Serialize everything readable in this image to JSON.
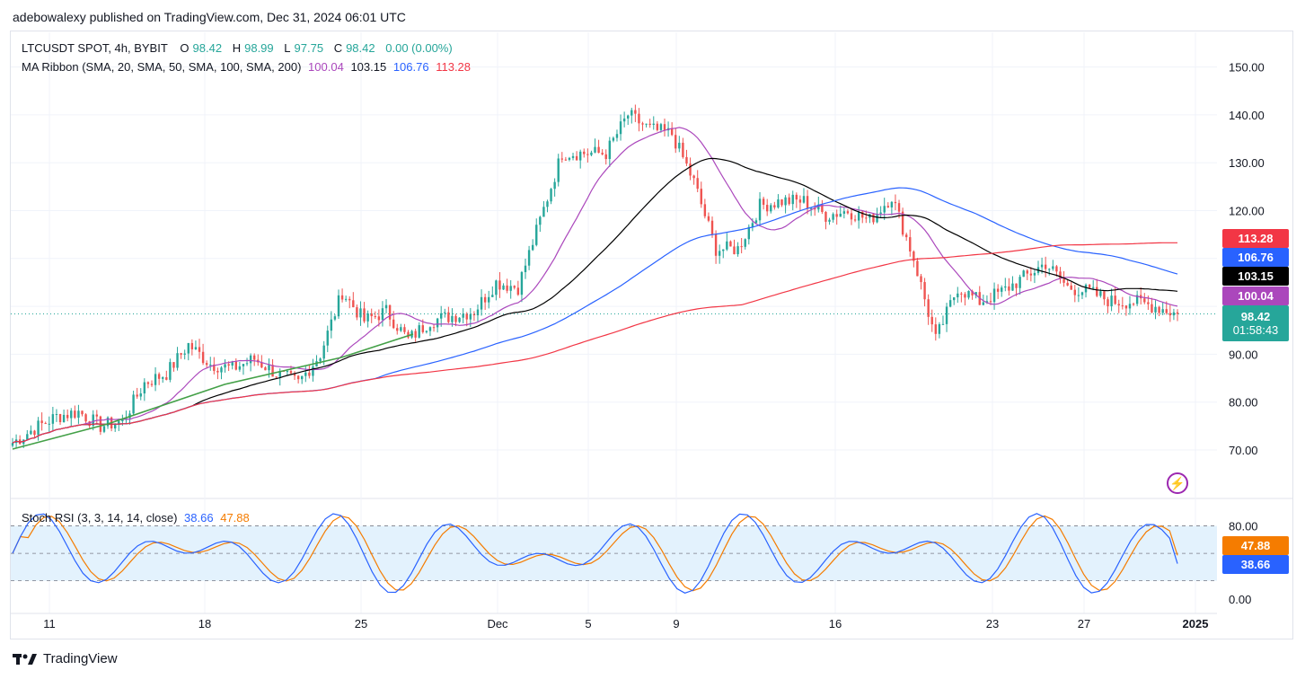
{
  "publish_line": "adebowalexy published on TradingView.com, Dec 31, 2024 06:01 UTC",
  "legend": {
    "symbol": "LTCUSDT SPOT, 4h, BYBIT",
    "o_label": "O",
    "o": "98.42",
    "h_label": "H",
    "h": "98.99",
    "l_label": "L",
    "l": "97.75",
    "c_label": "C",
    "c": "98.42",
    "change": "0.00 (0.00%)",
    "ma_label": "MA Ribbon (SMA, 20, SMA, 50, SMA, 100, SMA, 200)",
    "ma20": "100.04",
    "ma50": "103.15",
    "ma100": "106.76",
    "ma200": "113.28",
    "stoch_label": "Stoch RSI (3, 3, 14, 14, close)",
    "stoch_k": "38.66",
    "stoch_d": "47.88"
  },
  "price_badges": {
    "ma200": "113.28",
    "ma100": "106.76",
    "ma50": "103.15",
    "ma20": "100.04",
    "last": "98.42",
    "countdown": "01:58:43"
  },
  "stoch_badges": {
    "d": "47.88",
    "k": "38.66"
  },
  "footer_brand": "TradingView",
  "colors": {
    "up": "#26a69a",
    "down": "#ef5350",
    "ma20": "#ab47bc",
    "ma50": "#000000",
    "ma100": "#2962ff",
    "ma200": "#f23645",
    "green_line": "#43a047",
    "k": "#2962ff",
    "d": "#f57c00",
    "band": "#e3f2fd"
  },
  "chart_data": [
    {
      "type": "line",
      "symbol": "LTCUSDT",
      "timeframe": "4h",
      "x_ticks": [
        "11",
        "18",
        "25",
        "Dec",
        "5",
        "9",
        "16",
        "23",
        "27",
        "2025"
      ],
      "y_ticks": [
        70,
        80,
        90,
        100,
        110,
        120,
        130,
        140,
        150
      ],
      "y_tick_labels": [
        "70.00",
        "80.00",
        "90.00",
        "",
        "",
        "120.00",
        "130.00",
        "140.00",
        "150.00"
      ],
      "ylim": [
        62,
        156
      ],
      "x": [
        "11",
        "",
        "",
        "",
        "18",
        "",
        "",
        "",
        "25",
        "",
        "",
        "",
        "Dec",
        "",
        "5",
        "",
        "9",
        "",
        "",
        "",
        "16",
        "",
        "",
        "",
        "23",
        "",
        "27",
        "",
        "",
        "2025"
      ],
      "close_points": [
        {
          "t": "Nov 8",
          "v": 71.5
        },
        {
          "t": "Nov 9",
          "v": 74.5
        },
        {
          "t": "Nov 10",
          "v": 77
        },
        {
          "t": "Nov 11",
          "v": 78
        },
        {
          "t": "Nov 12",
          "v": 75
        },
        {
          "t": "Nov 13",
          "v": 76
        },
        {
          "t": "Nov 14",
          "v": 84
        },
        {
          "t": "Nov 15",
          "v": 86
        },
        {
          "t": "Nov 16",
          "v": 92
        },
        {
          "t": "Nov 17",
          "v": 88
        },
        {
          "t": "Nov 18",
          "v": 87
        },
        {
          "t": "Nov 19",
          "v": 89
        },
        {
          "t": "Nov 20",
          "v": 86
        },
        {
          "t": "Nov 21",
          "v": 84
        },
        {
          "t": "Nov 22",
          "v": 90
        },
        {
          "t": "Nov 23",
          "v": 103
        },
        {
          "t": "Nov 24",
          "v": 97
        },
        {
          "t": "Nov 25",
          "v": 99
        },
        {
          "t": "Nov 26",
          "v": 93
        },
        {
          "t": "Nov 27",
          "v": 97
        },
        {
          "t": "Nov 28",
          "v": 98
        },
        {
          "t": "Nov 29",
          "v": 99
        },
        {
          "t": "Nov 30",
          "v": 105
        },
        {
          "t": "Dec 1",
          "v": 104
        },
        {
          "t": "Dec 2",
          "v": 118
        },
        {
          "t": "Dec 3",
          "v": 132
        },
        {
          "t": "Dec 4",
          "v": 132
        },
        {
          "t": "Dec 5",
          "v": 132
        },
        {
          "t": "Dec 6",
          "v": 140
        },
        {
          "t": "Dec 7",
          "v": 137
        },
        {
          "t": "Dec 8",
          "v": 136
        },
        {
          "t": "Dec 9",
          "v": 126
        },
        {
          "t": "Dec 10",
          "v": 112
        },
        {
          "t": "Dec 11",
          "v": 112
        },
        {
          "t": "Dec 12",
          "v": 121
        },
        {
          "t": "Dec 13",
          "v": 122
        },
        {
          "t": "Dec 14",
          "v": 122
        },
        {
          "t": "Dec 15",
          "v": 119
        },
        {
          "t": "Dec 16",
          "v": 120
        },
        {
          "t": "Dec 17",
          "v": 118
        },
        {
          "t": "Dec 18",
          "v": 123
        },
        {
          "t": "Dec 19",
          "v": 110
        },
        {
          "t": "Dec 20",
          "v": 93
        },
        {
          "t": "Dec 21",
          "v": 104
        },
        {
          "t": "Dec 22",
          "v": 101
        },
        {
          "t": "Dec 23",
          "v": 103
        },
        {
          "t": "Dec 24",
          "v": 106
        },
        {
          "t": "Dec 25",
          "v": 109
        },
        {
          "t": "Dec 26",
          "v": 104
        },
        {
          "t": "Dec 27",
          "v": 103
        },
        {
          "t": "Dec 28",
          "v": 101
        },
        {
          "t": "Dec 29",
          "v": 101
        },
        {
          "t": "Dec 30",
          "v": 100
        },
        {
          "t": "Dec 31",
          "v": 98.42
        }
      ],
      "series": [
        {
          "name": "SMA 20",
          "last": 100.04
        },
        {
          "name": "SMA 50",
          "last": 103.15
        },
        {
          "name": "SMA 100",
          "last": 106.76
        },
        {
          "name": "SMA 200",
          "last": 113.28
        }
      ],
      "last_price": 98.42
    },
    {
      "type": "line",
      "title": "Stoch RSI (3, 3, 14, 14, close)",
      "y_ticks": [
        0,
        20,
        50,
        80
      ],
      "y_tick_labels": [
        "0.00",
        "",
        "",
        "80.00"
      ],
      "ylim": [
        -8,
        108
      ],
      "bands": [
        20,
        50,
        80
      ],
      "k_last": 38.66,
      "d_last": 47.88
    }
  ]
}
